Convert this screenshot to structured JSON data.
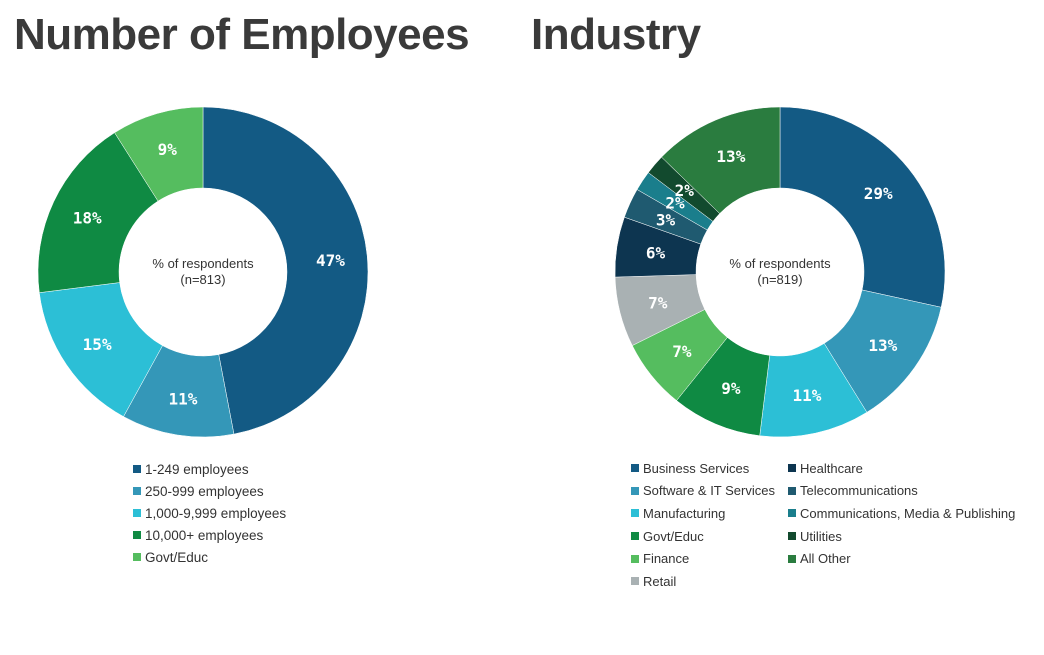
{
  "chart_data": [
    {
      "type": "pie",
      "title": "Number of Employees",
      "center_label": "% of respondents",
      "center_sublabel": "(n=813)",
      "categories": [
        "1-249 employees",
        "250-999 employees",
        "1,000-9,999 employees",
        "10,000+ employees",
        "Govt/Educ"
      ],
      "values": [
        47,
        11,
        15,
        18,
        9
      ],
      "labels": [
        "47%",
        "11%",
        "15%",
        "18%",
        "9%"
      ],
      "colors": [
        "#135a84",
        "#3497b8",
        "#2cbfd6",
        "#0f8a43",
        "#55bd5f"
      ]
    },
    {
      "type": "pie",
      "title": "Industry",
      "center_label": "% of respondents",
      "center_sublabel": "(n=819)",
      "categories": [
        "Business Services",
        "Software & IT Services",
        "Manufacturing",
        "Govt/Educ",
        "Finance",
        "Retail",
        "Healthcare",
        "Telecommunications",
        "Communications, Media & Publishing",
        "Utilities",
        "All Other"
      ],
      "values": [
        29,
        13,
        11,
        9,
        7,
        7,
        6,
        3,
        2,
        2,
        13
      ],
      "labels": [
        "29%",
        "13%",
        "11%",
        "9%",
        "7%",
        "7%",
        "6%",
        "3%",
        "2%",
        "2%",
        "13%"
      ],
      "colors": [
        "#135a84",
        "#3497b8",
        "#2cbfd6",
        "#0f8a43",
        "#55bd5f",
        "#a9b1b3",
        "#0d3550",
        "#1f5a70",
        "#1a7e8c",
        "#124a2e",
        "#2a7c3f"
      ]
    }
  ]
}
